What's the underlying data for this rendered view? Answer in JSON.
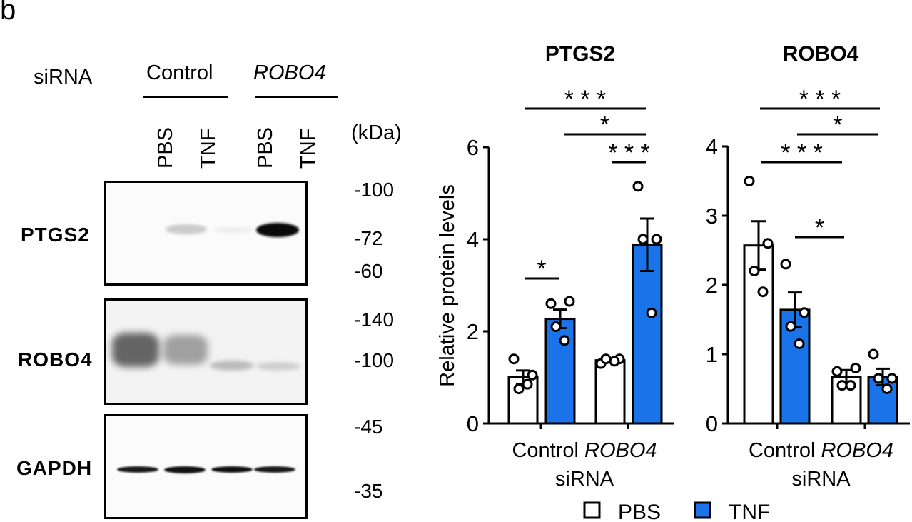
{
  "panel_label": "b",
  "blot": {
    "siRNA_label": "siRNA",
    "groups": [
      {
        "label": "Control",
        "italic": false
      },
      {
        "label": "ROBO4",
        "italic": true
      }
    ],
    "lanes": [
      "PBS",
      "TNF",
      "PBS",
      "TNF"
    ],
    "kda_label": "(kDa)",
    "panels": [
      {
        "protein": "PTGS2",
        "markers": [
          "-100",
          "-72",
          "-60"
        ]
      },
      {
        "protein": "ROBO4",
        "markers": [
          "-140",
          "-100"
        ]
      },
      {
        "protein": "GAPDH",
        "markers": [
          "-45",
          "-35"
        ]
      }
    ]
  },
  "colors": {
    "tnf_fill": "#1a73e8",
    "pbs_fill": "#ffffff",
    "stroke": "#000000"
  },
  "legend": {
    "items": [
      {
        "label": "PBS",
        "color": "#ffffff"
      },
      {
        "label": "TNF",
        "color": "#1a73e8"
      }
    ]
  },
  "chart_data": [
    {
      "type": "bar",
      "title": "PTGS2",
      "ylabel": "Relative protein levels",
      "xlabel": "siRNA",
      "categories": [
        "Control",
        "ROBO4"
      ],
      "ylim": [
        0,
        6
      ],
      "yticks": [
        "0",
        "2",
        "4",
        "6"
      ],
      "grid": false,
      "legend_position": "bottom",
      "series": [
        {
          "name": "PBS",
          "values": [
            1.0,
            1.37
          ],
          "sem": [
            0.15,
            0.03
          ],
          "points": [
            [
              1.4,
              1.05,
              0.75,
              0.85
            ],
            [
              1.3,
              1.4,
              1.4,
              1.35
            ]
          ]
        },
        {
          "name": "TNF",
          "values": [
            2.27,
            3.88
          ],
          "sem": [
            0.2,
            0.57
          ],
          "points": [
            [
              2.6,
              2.65,
              2.1,
              1.8
            ],
            [
              5.15,
              4.0,
              4.0,
              2.4
            ]
          ]
        }
      ],
      "significance": [
        {
          "from": "Control PBS",
          "to": "ROBO4 TNF",
          "label": "***"
        },
        {
          "from": "Control TNF",
          "to": "ROBO4 TNF",
          "label": "*"
        },
        {
          "from": "ROBO4 PBS",
          "to": "ROBO4 TNF",
          "label": "***"
        },
        {
          "from": "Control PBS",
          "to": "Control TNF",
          "label": "*"
        }
      ]
    },
    {
      "type": "bar",
      "title": "ROBO4",
      "ylabel": "Relative protein levels",
      "xlabel": "siRNA",
      "categories": [
        "Control",
        "ROBO4"
      ],
      "ylim": [
        0,
        4
      ],
      "yticks": [
        "0",
        "1",
        "2",
        "3",
        "4"
      ],
      "grid": false,
      "legend_position": "bottom",
      "series": [
        {
          "name": "PBS",
          "values": [
            2.57,
            0.67
          ],
          "sem": [
            0.35,
            0.1
          ],
          "points": [
            [
              3.5,
              2.6,
              2.2,
              1.9
            ],
            [
              0.75,
              0.8,
              0.55,
              0.55
            ]
          ]
        },
        {
          "name": "TNF",
          "values": [
            1.64,
            0.67
          ],
          "sem": [
            0.25,
            0.12
          ],
          "points": [
            [
              2.3,
              1.6,
              1.4,
              1.15
            ],
            [
              1.0,
              0.65,
              0.65,
              0.5
            ]
          ]
        }
      ],
      "significance": [
        {
          "from": "Control PBS",
          "to": "ROBO4 TNF",
          "label": "***"
        },
        {
          "from": "Control TNF",
          "to": "ROBO4 TNF",
          "label": "*"
        },
        {
          "from": "Control PBS",
          "to": "ROBO4 PBS",
          "label": "***"
        },
        {
          "from": "Control TNF",
          "to": "ROBO4 PBS",
          "label": "*"
        }
      ]
    }
  ]
}
